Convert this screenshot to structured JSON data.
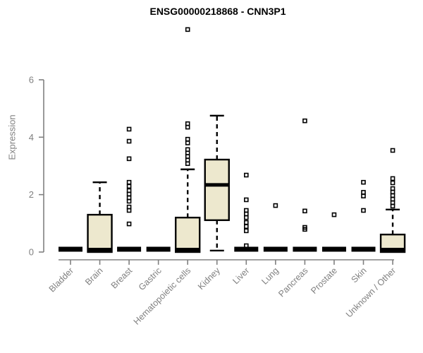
{
  "chart_data": {
    "type": "boxplot",
    "title": "ENSG00000218868 - CNN3P1",
    "ylabel": "Expression",
    "xlabel": "",
    "ylim": [
      0,
      6
    ],
    "yticks": [
      "0",
      "2",
      "4",
      "6"
    ],
    "grid": false,
    "legend": "none",
    "categories": [
      "Bladder",
      "Brain",
      "Breast",
      "Gastric",
      "Hematopoietic cells",
      "Kidney",
      "Liver",
      "Lung",
      "Pancreas",
      "Prostate",
      "Skin",
      "Unknown / Other"
    ],
    "boxes": [
      {
        "category": "Bladder",
        "low": 0,
        "q1": 0,
        "median": 0,
        "q3": 0,
        "high": 0,
        "outliers": []
      },
      {
        "category": "Brain",
        "low": 0,
        "q1": 0,
        "median": 0,
        "q3": 1.3,
        "high": 2.43,
        "outliers": []
      },
      {
        "category": "Breast",
        "low": 0,
        "q1": 0,
        "median": 0,
        "q3": 0,
        "high": 0,
        "outliers": [
          4.28,
          3.86,
          3.25,
          2.43,
          2.29,
          2.14,
          2.02,
          1.89,
          1.77,
          1.57,
          1.45,
          0.98
        ]
      },
      {
        "category": "Gastric",
        "low": 0,
        "q1": 0,
        "median": 0,
        "q3": 0,
        "high": 0,
        "outliers": []
      },
      {
        "category": "Hematopoietic cells",
        "low": 0,
        "q1": 0,
        "median": 0,
        "q3": 1.2,
        "high": 2.88,
        "outliers": [
          7.75,
          4.47,
          4.35,
          3.93,
          3.8,
          3.57,
          3.45,
          3.33,
          3.2,
          3.08
        ]
      },
      {
        "category": "Kidney",
        "low": 0.05,
        "q1": 1.11,
        "median": 2.34,
        "q3": 3.22,
        "high": 4.75,
        "outliers": []
      },
      {
        "category": "Liver",
        "low": 0,
        "q1": 0,
        "median": 0,
        "q3": 0,
        "high": 0,
        "outliers": [
          2.68,
          1.82,
          1.45,
          1.33,
          1.2,
          1.03,
          0.89,
          0.74,
          0.22
        ]
      },
      {
        "category": "Lung",
        "low": 0,
        "q1": 0,
        "median": 0,
        "q3": 0,
        "high": 0,
        "outliers": [
          1.62
        ]
      },
      {
        "category": "Pancreas",
        "low": 0,
        "q1": 0,
        "median": 0,
        "q3": 0,
        "high": 0,
        "outliers": [
          4.57,
          1.43,
          0.86,
          0.79
        ]
      },
      {
        "category": "Prostate",
        "low": 0,
        "q1": 0,
        "median": 0,
        "q3": 0,
        "high": 0,
        "outliers": [
          1.3
        ]
      },
      {
        "category": "Skin",
        "low": 0,
        "q1": 0,
        "median": 0,
        "q3": 0,
        "high": 0,
        "outliers": [
          2.43,
          2.08,
          1.95,
          1.45
        ]
      },
      {
        "category": "Unknown / Other",
        "low": 0,
        "q1": 0,
        "median": 0,
        "q3": 0.61,
        "high": 1.48,
        "outliers": [
          3.54,
          2.56,
          2.41,
          2.21,
          2.09,
          1.97,
          1.84,
          1.72,
          1.6
        ]
      }
    ],
    "colors": {
      "box_fill": "#EDE8CE",
      "box_stroke": "#000000",
      "median": "#000000",
      "whisker": "#000000",
      "outlier_stroke": "#000000",
      "axis": "#808080",
      "tick_label": "#808080",
      "title": "#000000",
      "background": "#FFFFFF"
    }
  }
}
